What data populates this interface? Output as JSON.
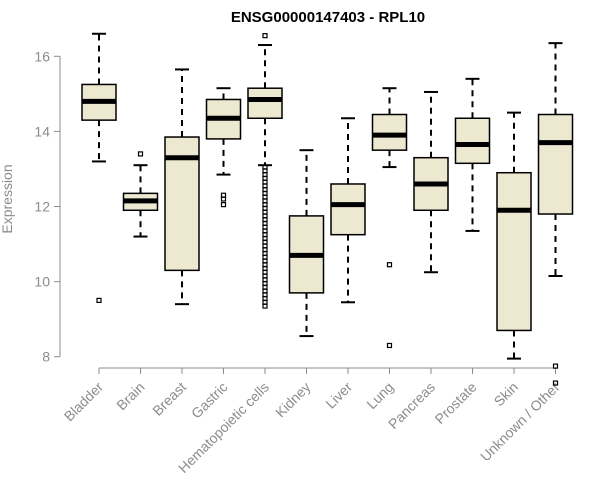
{
  "chart_data": {
    "type": "boxplot",
    "title": "ENSG00000147403 - RPL10",
    "ylabel": "Expression",
    "ylim": [
      7.7,
      16.7
    ],
    "yticks": [
      8,
      10,
      12,
      14,
      16
    ],
    "box_fill": "#ede8d0",
    "box_stroke": "#000000",
    "categories": [
      "Bladder",
      "Brain",
      "Breast",
      "Gastric",
      "Hematopoietic cells",
      "Kidney",
      "Liver",
      "Lung",
      "Pancreas",
      "Prostate",
      "Skin",
      "Unknown / Other"
    ],
    "boxes": [
      {
        "whisker_low": 13.2,
        "q1": 14.3,
        "median": 14.8,
        "q3": 15.25,
        "whisker_high": 16.6,
        "outliers": [
          9.5
        ]
      },
      {
        "whisker_low": 11.2,
        "q1": 11.9,
        "median": 12.15,
        "q3": 12.35,
        "whisker_high": 13.1,
        "outliers": [
          13.4
        ]
      },
      {
        "whisker_low": 9.4,
        "q1": 10.3,
        "median": 13.3,
        "q3": 13.85,
        "whisker_high": 15.65,
        "outliers": []
      },
      {
        "whisker_low": 12.85,
        "q1": 13.8,
        "median": 14.35,
        "q3": 14.85,
        "whisker_high": 15.15,
        "outliers": [
          12.3,
          12.2,
          12.05
        ]
      },
      {
        "whisker_low": 13.1,
        "q1": 14.35,
        "median": 14.85,
        "q3": 15.15,
        "whisker_high": 16.3,
        "outliers": [
          16.55,
          13.05,
          12.95,
          12.85,
          12.75,
          12.65,
          12.55,
          12.45,
          12.35,
          12.25,
          12.15,
          12.05,
          11.95,
          11.85,
          11.75,
          11.65,
          11.55,
          11.45,
          11.35,
          11.25,
          11.15,
          11.05,
          10.95,
          10.85,
          10.75,
          10.65,
          10.55,
          10.45,
          10.35,
          10.25,
          10.15,
          10.05,
          9.95,
          9.85,
          9.75,
          9.65,
          9.55,
          9.45,
          9.35
        ]
      },
      {
        "whisker_low": 8.55,
        "q1": 9.7,
        "median": 10.7,
        "q3": 11.75,
        "whisker_high": 13.5,
        "outliers": []
      },
      {
        "whisker_low": 9.45,
        "q1": 11.25,
        "median": 12.05,
        "q3": 12.6,
        "whisker_high": 14.35,
        "outliers": []
      },
      {
        "whisker_low": 13.05,
        "q1": 13.5,
        "median": 13.9,
        "q3": 14.45,
        "whisker_high": 15.15,
        "outliers": [
          10.45,
          8.3
        ]
      },
      {
        "whisker_low": 10.25,
        "q1": 11.9,
        "median": 12.6,
        "q3": 13.3,
        "whisker_high": 15.05,
        "outliers": []
      },
      {
        "whisker_low": 11.35,
        "q1": 13.15,
        "median": 13.65,
        "q3": 14.35,
        "whisker_high": 15.4,
        "outliers": []
      },
      {
        "whisker_low": 7.95,
        "q1": 8.7,
        "median": 11.9,
        "q3": 12.9,
        "whisker_high": 14.5,
        "outliers": []
      },
      {
        "whisker_low": 10.15,
        "q1": 11.8,
        "median": 13.7,
        "q3": 14.45,
        "whisker_high": 16.35,
        "outliers": [
          7.75,
          7.3
        ]
      }
    ]
  }
}
